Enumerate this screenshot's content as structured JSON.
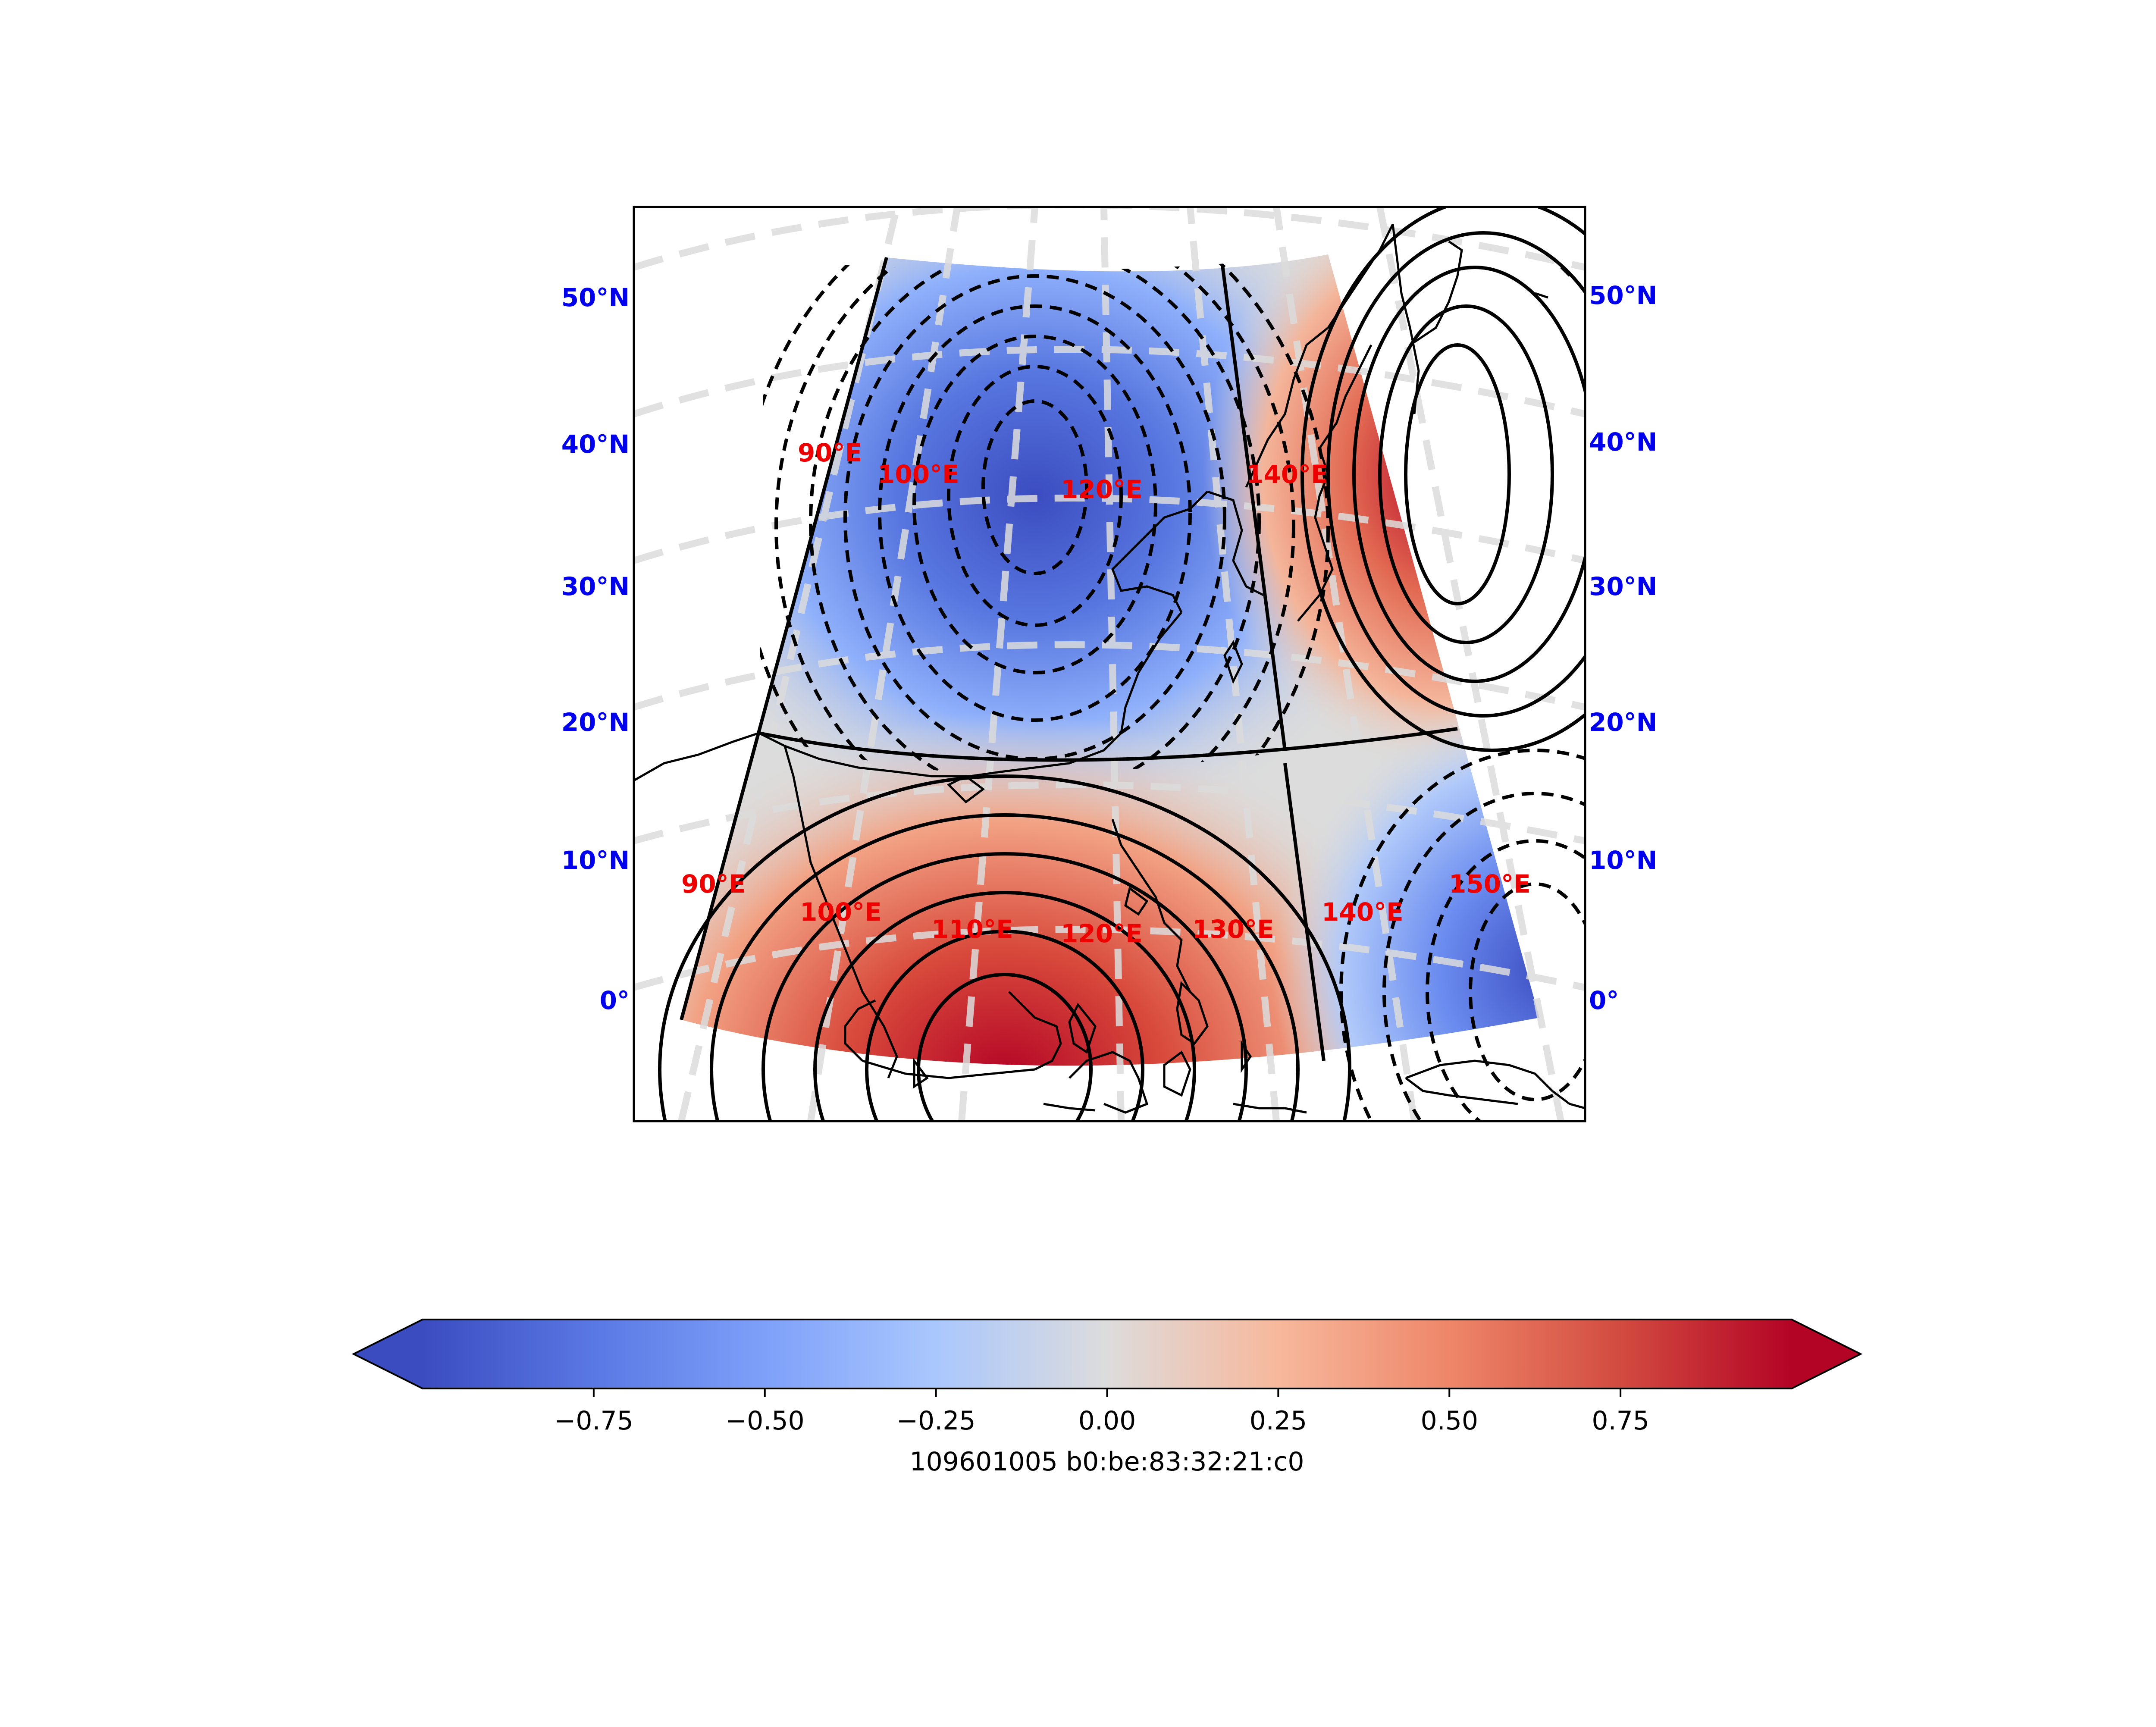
{
  "colors": {
    "negative_extreme": "#3b4cc0",
    "neutral": "#dddddd",
    "positive_extreme": "#b40426",
    "lat_label": "#0000ee",
    "lon_label": "#ee0000",
    "gridline": "#dcdcdc"
  },
  "map": {
    "projection": "conic",
    "colormap": "coolwarm",
    "lat_labels_left": [
      "50°N",
      "40°N",
      "30°N",
      "20°N",
      "10°N",
      "0°"
    ],
    "lat_labels_right": [
      "50°N",
      "40°N",
      "30°N",
      "20°N",
      "10°N",
      "0°"
    ],
    "lon_labels_upper": [
      "90°E",
      "100°E",
      "120°E",
      "140°E"
    ],
    "lon_labels_lower": [
      "90°E",
      "100°E",
      "110°E",
      "120°E",
      "130°E",
      "140°E",
      "150°E"
    ]
  },
  "colorbar": {
    "ticks": [
      "−0.75",
      "−0.50",
      "−0.25",
      "0.00",
      "0.25",
      "0.50",
      "0.75"
    ],
    "range": [
      -1,
      1
    ],
    "extend": "both",
    "label": "109601005 b0:be:83:32:21:c0"
  }
}
